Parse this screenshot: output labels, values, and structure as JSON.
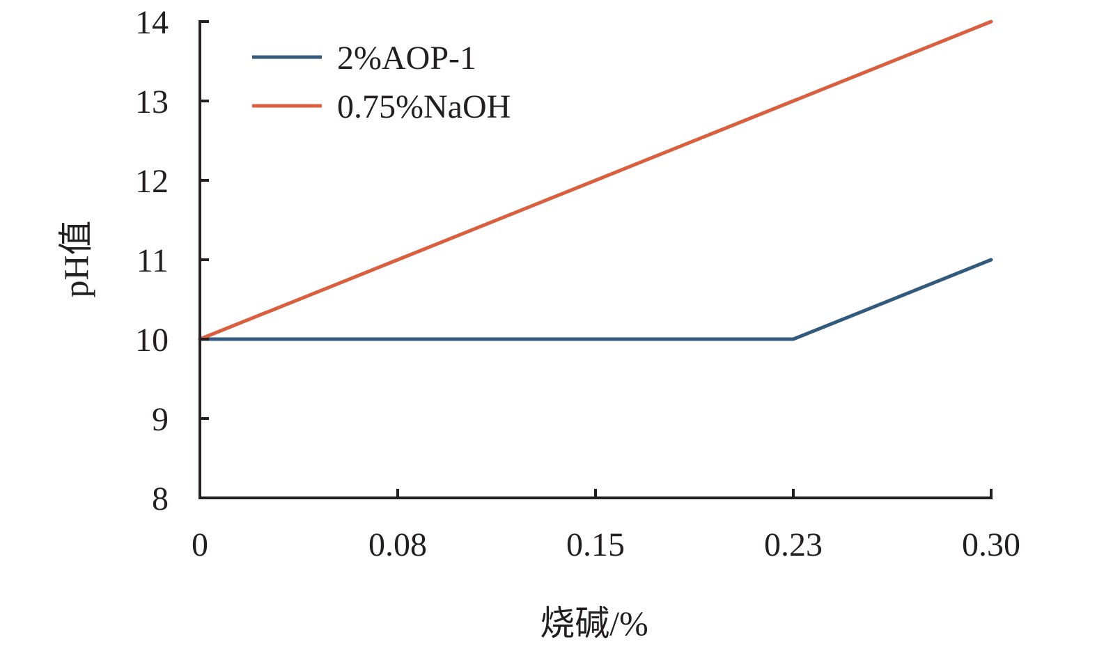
{
  "chart_data": {
    "type": "line",
    "title": "",
    "xlabel": "烧碱/%",
    "ylabel": "pH值",
    "categories": [
      "0",
      "0.08",
      "0.15",
      "0.23",
      "0.30"
    ],
    "yticks": [
      "8",
      "9",
      "10",
      "11",
      "12",
      "13",
      "14"
    ],
    "ylim": [
      8,
      14
    ],
    "grid": false,
    "legend_position": "top-left",
    "series": [
      {
        "name": "2%AOP-1",
        "color": "#325a7c",
        "values": [
          10,
          10,
          10,
          10,
          11
        ]
      },
      {
        "name": "0.75%NaOH",
        "color": "#d95f3e",
        "values": [
          10,
          11,
          12,
          13,
          14
        ]
      }
    ]
  }
}
